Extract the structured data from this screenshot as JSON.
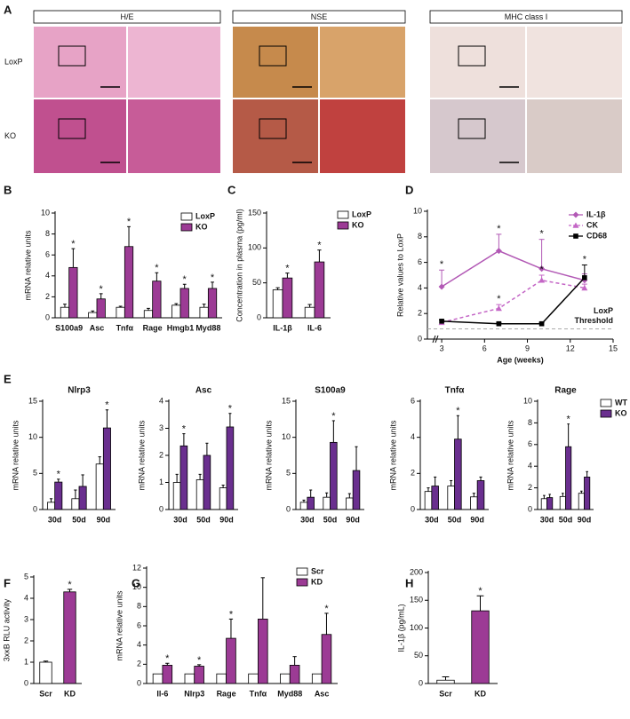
{
  "figure_a": {
    "label": "A",
    "columns": [
      "H/E",
      "NSE",
      "MHC class I"
    ],
    "rows": [
      "LoxP",
      "KO"
    ]
  },
  "chart_data": [
    {
      "type": "bar",
      "panel": "B",
      "ylabel": "mRNA relative units",
      "categories": [
        "S100a9",
        "Asc",
        "Tnfα",
        "Rage",
        "Hmgb1",
        "Myd88"
      ],
      "series": [
        {
          "name": "LoxP",
          "color": "#ffffff",
          "values": [
            1.0,
            0.5,
            1.0,
            0.7,
            1.2,
            1.0
          ],
          "errors": [
            0.3,
            0.15,
            0.1,
            0.2,
            0.15,
            0.3
          ]
        },
        {
          "name": "KO",
          "color": "#9c3b95",
          "values": [
            4.8,
            1.8,
            6.8,
            3.5,
            2.8,
            2.8
          ],
          "errors": [
            1.8,
            0.5,
            1.9,
            0.8,
            0.4,
            0.6
          ],
          "sig_labels": [
            "*",
            "*",
            "*",
            "*",
            "*",
            "*"
          ]
        }
      ],
      "ylim": [
        0,
        10
      ],
      "yticks": [
        0,
        2,
        4,
        6,
        8,
        10
      ],
      "legend": "upper right"
    },
    {
      "type": "bar",
      "panel": "C",
      "ylabel": "Concentration in plasma (pg/ml)",
      "categories": [
        "IL-1β",
        "IL-6"
      ],
      "series": [
        {
          "name": "LoxP",
          "color": "#ffffff",
          "values": [
            40,
            15
          ],
          "errors": [
            3,
            4
          ]
        },
        {
          "name": "KO",
          "color": "#9c3b95",
          "values": [
            57,
            80
          ],
          "errors": [
            7,
            17
          ],
          "sig_labels": [
            "*",
            "*"
          ]
        }
      ],
      "ylim": [
        0,
        150
      ],
      "yticks": [
        0,
        50,
        100,
        150
      ],
      "legend": "right"
    },
    {
      "type": "line",
      "panel": "D",
      "ylabel": "Relative values to LoxP",
      "xlabel": "Age (weeks)",
      "x": [
        3,
        7,
        10,
        13
      ],
      "series": [
        {
          "name": "IL-1β",
          "color": "#b259b5",
          "marker": "diamond",
          "dashed": false,
          "values": [
            4.1,
            6.9,
            5.5,
            4.6
          ],
          "errors": [
            1.3,
            1.3,
            2.3,
            0.5
          ],
          "sig_labels": [
            "*",
            "*",
            "*",
            null
          ]
        },
        {
          "name": "CK",
          "color": "#c466c6",
          "marker": "triangle",
          "dashed": true,
          "values": [
            1.3,
            2.4,
            4.6,
            4.0
          ],
          "errors": [
            0.2,
            0.3,
            0.4,
            0.3
          ],
          "sig_labels": [
            null,
            "*",
            "*",
            null
          ]
        },
        {
          "name": "CD68",
          "color": "#000000",
          "marker": "square",
          "dashed": false,
          "values": [
            1.4,
            1.2,
            1.2,
            4.8
          ],
          "errors": [
            0.1,
            0.1,
            0.1,
            1.0
          ],
          "sig_labels": [
            null,
            null,
            null,
            "*"
          ]
        }
      ],
      "threshold": {
        "value": 0.8,
        "label_lines": [
          "LoxP",
          "Threshold"
        ]
      },
      "xlim": [
        2,
        15
      ],
      "xticks": [
        3,
        6,
        9,
        12,
        15
      ],
      "ylim": [
        0,
        10
      ],
      "yticks": [
        0,
        2,
        4,
        6,
        8,
        10
      ],
      "legend": "upper right"
    },
    {
      "type": "bar",
      "panel": "E",
      "title": "Nlrp3",
      "ylabel": "mRNA relative units",
      "categories": [
        "30d",
        "50d",
        "90d"
      ],
      "series": [
        {
          "name": "WT",
          "color": "#ffffff",
          "values": [
            1.0,
            1.5,
            6.3
          ],
          "errors": [
            0.5,
            1.2,
            1.0
          ]
        },
        {
          "name": "KO",
          "color": "#6a2f8f",
          "values": [
            3.8,
            3.2,
            11.3
          ],
          "errors": [
            0.4,
            1.6,
            2.5
          ],
          "sig_labels": [
            "*",
            null,
            "*"
          ]
        }
      ],
      "ylim": [
        0,
        15
      ],
      "yticks": [
        0,
        5,
        10,
        15
      ]
    },
    {
      "type": "bar",
      "title": "Asc",
      "ylabel": "mRNA relative units",
      "categories": [
        "30d",
        "50d",
        "90d"
      ],
      "series": [
        {
          "name": "WT",
          "color": "#ffffff",
          "values": [
            1.0,
            1.1,
            0.8
          ],
          "errors": [
            0.3,
            0.2,
            0.1
          ]
        },
        {
          "name": "KO",
          "color": "#6a2f8f",
          "values": [
            2.35,
            2.0,
            3.05
          ],
          "errors": [
            0.45,
            0.45,
            0.5
          ],
          "sig_labels": [
            "*",
            null,
            "*"
          ]
        }
      ],
      "ylim": [
        0,
        4
      ],
      "yticks": [
        0,
        1,
        2,
        3,
        4
      ]
    },
    {
      "type": "bar",
      "title": "S100a9",
      "ylabel": "mRNA relative units",
      "categories": [
        "30d",
        "50d",
        "90d"
      ],
      "series": [
        {
          "name": "WT",
          "color": "#ffffff",
          "values": [
            1.0,
            1.7,
            1.6
          ],
          "errors": [
            0.3,
            0.6,
            0.6
          ]
        },
        {
          "name": "KO",
          "color": "#6a2f8f",
          "values": [
            1.7,
            9.3,
            5.4
          ],
          "errors": [
            1.0,
            3.0,
            3.3
          ],
          "sig_labels": [
            null,
            "*",
            null
          ]
        }
      ],
      "ylim": [
        0,
        15
      ],
      "yticks": [
        0,
        5,
        10,
        15
      ]
    },
    {
      "type": "bar",
      "title": "Tnfα",
      "ylabel": "mRNA relative units",
      "categories": [
        "30d",
        "50d",
        "90d"
      ],
      "series": [
        {
          "name": "WT",
          "color": "#ffffff",
          "values": [
            1.0,
            1.3,
            0.7
          ],
          "errors": [
            0.2,
            0.3,
            0.2
          ]
        },
        {
          "name": "KO",
          "color": "#6a2f8f",
          "values": [
            1.3,
            3.9,
            1.6
          ],
          "errors": [
            0.5,
            1.3,
            0.2
          ],
          "sig_labels": [
            null,
            "*",
            null
          ]
        }
      ],
      "ylim": [
        0,
        6
      ],
      "yticks": [
        0,
        2,
        4,
        6
      ]
    },
    {
      "type": "bar",
      "title": "Rage",
      "ylabel": "mRNA relative units",
      "categories": [
        "30d",
        "50d",
        "90d"
      ],
      "series": [
        {
          "name": "WT",
          "color": "#ffffff",
          "values": [
            1.0,
            1.2,
            1.5
          ],
          "errors": [
            0.3,
            0.3,
            0.2
          ]
        },
        {
          "name": "KO",
          "color": "#6a2f8f",
          "values": [
            1.1,
            5.8,
            3.0
          ],
          "errors": [
            0.3,
            2.1,
            0.5
          ],
          "sig_labels": [
            null,
            "*",
            null
          ]
        }
      ],
      "ylim": [
        0,
        10
      ],
      "yticks": [
        0,
        2,
        4,
        6,
        8,
        10
      ],
      "legend": "right"
    },
    {
      "type": "bar",
      "panel": "F",
      "ylabel": "3xκB RLU activity",
      "categories": [
        "Scr",
        "KD"
      ],
      "values": [
        1.0,
        4.3
      ],
      "errors": [
        0.05,
        0.12
      ],
      "colors": [
        "#ffffff",
        "#9c3b95"
      ],
      "sig_labels": [
        null,
        "*"
      ],
      "ylim": [
        0,
        5
      ],
      "yticks": [
        0,
        1,
        2,
        3,
        4,
        5
      ]
    },
    {
      "type": "bar",
      "panel": "G",
      "ylabel": "mRNA relative units",
      "categories": [
        "Il-6",
        "Nlrp3",
        "Rage",
        "Tnfα",
        "Myd88",
        "Asc"
      ],
      "series": [
        {
          "name": "Scr",
          "color": "#ffffff",
          "values": [
            1,
            1,
            1,
            1,
            1,
            1
          ]
        },
        {
          "name": "KD",
          "color": "#9c3b95",
          "values": [
            1.9,
            1.8,
            4.7,
            6.7,
            1.9,
            5.1
          ],
          "errors": [
            0.2,
            0.15,
            2.0,
            4.3,
            0.9,
            2.2
          ],
          "sig_labels": [
            "*",
            "*",
            "*",
            null,
            null,
            "*"
          ]
        }
      ],
      "ylim": [
        0,
        12
      ],
      "yticks": [
        0,
        2,
        4,
        6,
        8,
        10,
        12
      ],
      "legend": "upper right"
    },
    {
      "type": "bar",
      "panel": "H",
      "ylabel": "IL-1β (pg/mL)",
      "categories": [
        "Scr",
        "KD"
      ],
      "values": [
        6,
        131
      ],
      "errors": [
        6,
        27
      ],
      "colors": [
        "#ffffff",
        "#9c3b95"
      ],
      "sig_labels": [
        null,
        "*"
      ],
      "ylim": [
        0,
        200
      ],
      "yticks": [
        0,
        50,
        100,
        150,
        200
      ]
    }
  ]
}
